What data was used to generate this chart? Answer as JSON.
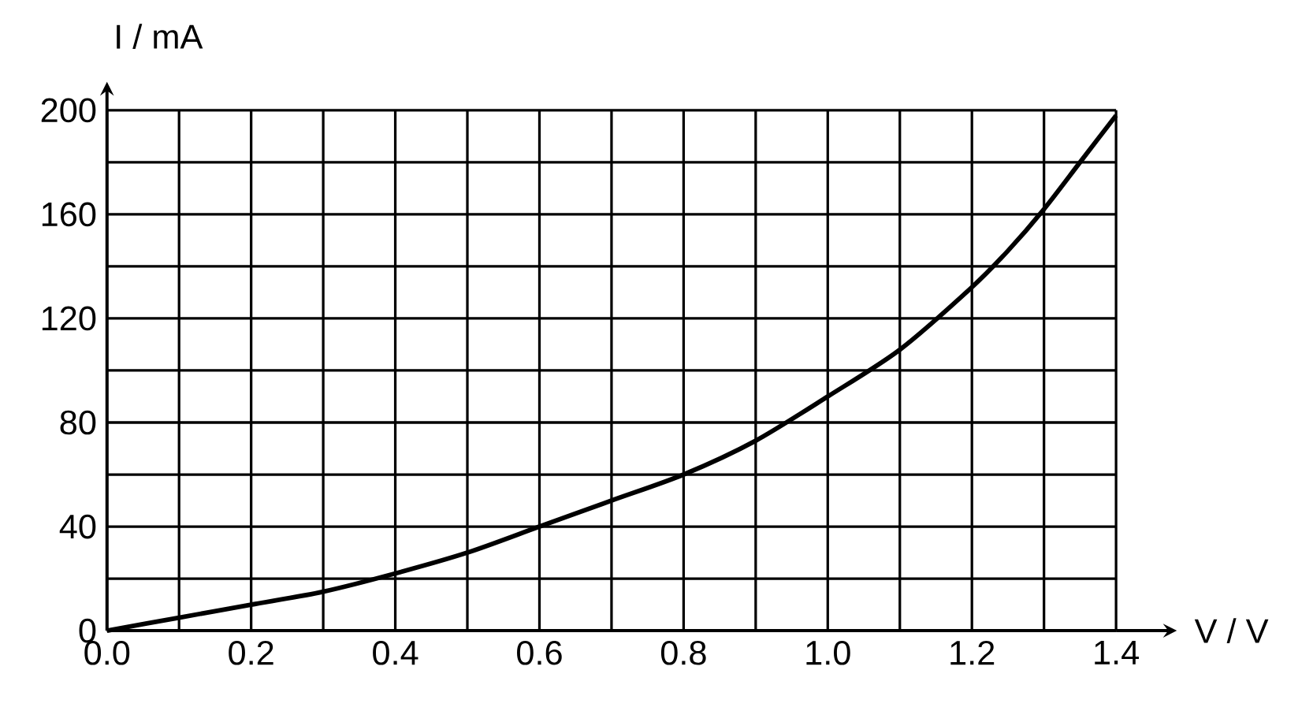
{
  "chart_data": {
    "type": "line",
    "xlabel": "V / V",
    "ylabel": "I / mA",
    "x": [
      0,
      0.1,
      0.2,
      0.3,
      0.4,
      0.5,
      0.6,
      0.7,
      0.8,
      0.9,
      1.0,
      1.1,
      1.2,
      1.25,
      1.3,
      1.35,
      1.4
    ],
    "series": [
      {
        "color": "#000000",
        "values": [
          0,
          5,
          10,
          15,
          22,
          30,
          40,
          50,
          60,
          73,
          90,
          108,
          132,
          146,
          162,
          180,
          198
        ]
      }
    ],
    "xlim": [
      0,
      1.4
    ],
    "ylim": [
      0,
      200
    ],
    "xticks": [
      {
        "value": 0,
        "label": "0.0"
      },
      {
        "value": 0.1,
        "label": null
      },
      0.2,
      {
        "value": 0.3,
        "label": null
      },
      0.4,
      {
        "value": 0.5,
        "label": null
      },
      0.6,
      {
        "value": 0.7,
        "label": null
      },
      0.8,
      {
        "value": 0.9,
        "label": null
      },
      {
        "value": 1.0,
        "label": "1.0"
      },
      {
        "value": 1.1,
        "label": null
      },
      1.2,
      {
        "value": 1.3,
        "label": null
      },
      1.4
    ],
    "yticks": [
      0,
      {
        "value": 20,
        "label": null
      },
      40,
      {
        "value": 60,
        "label": null
      },
      80,
      {
        "value": 100,
        "label": null
      },
      120,
      {
        "value": 140,
        "label": null
      },
      160,
      {
        "value": 180,
        "label": null
      },
      200
    ],
    "grid": true,
    "marker": "none",
    "line_style": "solid"
  }
}
